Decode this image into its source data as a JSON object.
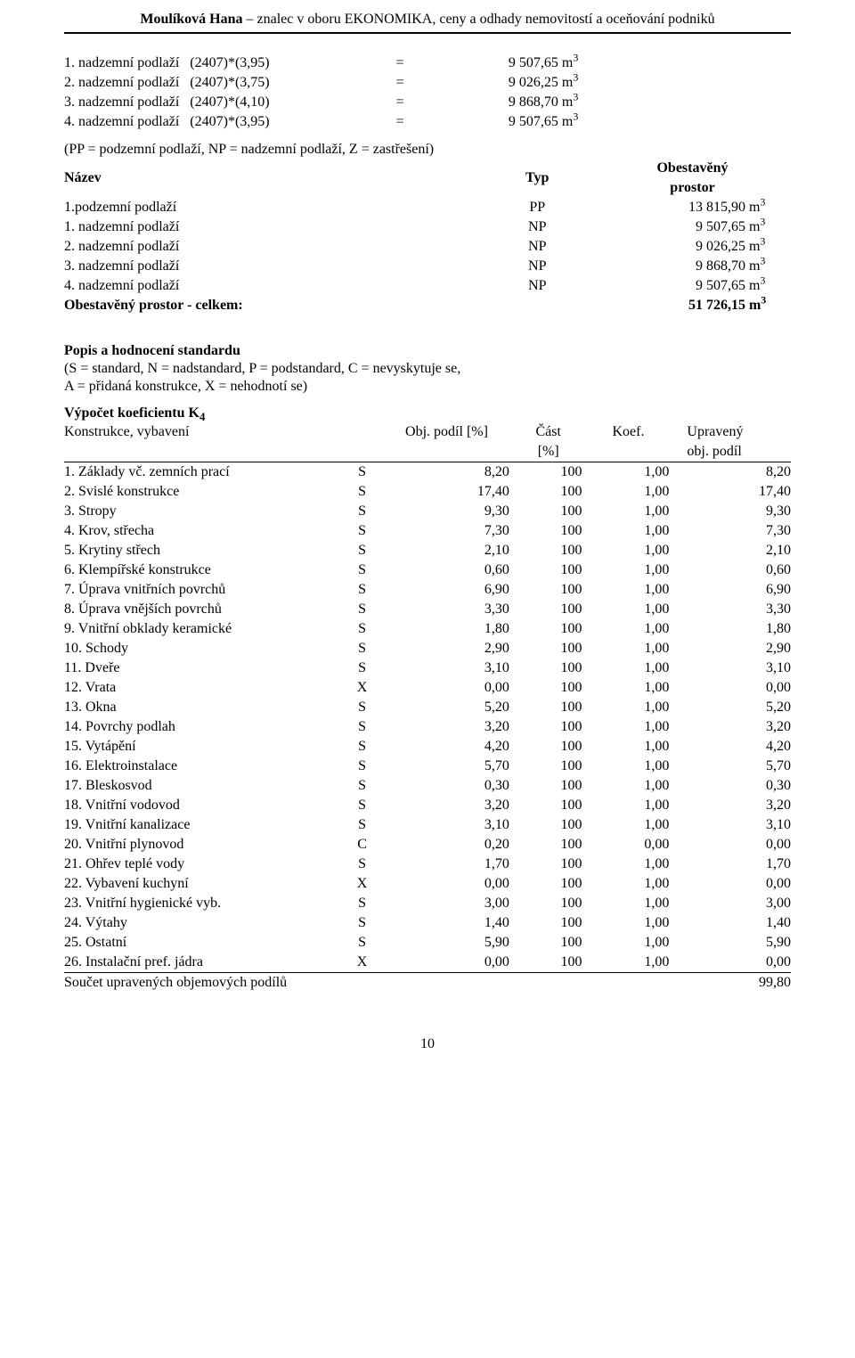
{
  "header": {
    "name_bold": "Moulíková Hana",
    "sep": " – ",
    "rest": "znalec v oboru EKONOMIKA, ceny a odhady nemovitostí a oceňování podniků"
  },
  "formula_rows": [
    {
      "label": "1. nadzemní podlaží",
      "expr": "(2407)*(3,95)",
      "eq": "=",
      "value": "9 507,65",
      "unit_prefix": "m",
      "unit_sup": "3"
    },
    {
      "label": "2. nadzemní podlaží",
      "expr": "(2407)*(3,75)",
      "eq": "=",
      "value": "9 026,25",
      "unit_prefix": "m",
      "unit_sup": "3"
    },
    {
      "label": "3. nadzemní podlaží",
      "expr": "(2407)*(4,10)",
      "eq": "=",
      "value": "9 868,70",
      "unit_prefix": "m",
      "unit_sup": "3"
    },
    {
      "label": "4. nadzemní podlaží",
      "expr": "(2407)*(3,95)",
      "eq": "=",
      "value": "9 507,65",
      "unit_prefix": "m",
      "unit_sup": "3"
    }
  ],
  "legend_line": "(PP = podzemní podlaží, NP = nadzemní podlaží, Z = zastřešení)",
  "ntp_header": {
    "name": "Název",
    "typ": "Typ",
    "obes_line1": "Obestavěný",
    "obes_line2": "prostor"
  },
  "ntp_rows": [
    {
      "name": "1.podzemní podlaží",
      "typ": "PP",
      "value": "13 815,90",
      "unit_prefix": "m",
      "unit_sup": "3"
    },
    {
      "name": "1. nadzemní podlaží",
      "typ": "NP",
      "value": "9 507,65",
      "unit_prefix": "m",
      "unit_sup": "3"
    },
    {
      "name": "2. nadzemní podlaží",
      "typ": "NP",
      "value": "9 026,25",
      "unit_prefix": "m",
      "unit_sup": "3"
    },
    {
      "name": "3. nadzemní podlaží",
      "typ": "NP",
      "value": "9 868,70",
      "unit_prefix": "m",
      "unit_sup": "3"
    },
    {
      "name": "4. nadzemní podlaží",
      "typ": "NP",
      "value": "9 507,65",
      "unit_prefix": "m",
      "unit_sup": "3"
    }
  ],
  "ntp_total": {
    "label": "Obestavěný prostor - celkem:",
    "value": "51 726,15",
    "unit_prefix": "m",
    "unit_sup": "3"
  },
  "standard_heading": "Popis a hodnocení standardu",
  "standard_legend_l1": "(S = standard, N = nadstandard, P = podstandard, C = nevyskytuje se,",
  "standard_legend_l2": "A = přidaná konstrukce, X = nehodnotí se)",
  "k4_heading_prefix": "Výpočet koeficientu K",
  "k4_heading_sub": "4",
  "k4_header": {
    "konstrukce": "Konstrukce, vybavení",
    "obj_podil": "Obj. podíl [%]",
    "cast_l1": "Část",
    "cast_l2": "[%]",
    "koef": "Koef.",
    "upr_l1": "Upravený",
    "upr_l2": "obj. podíl"
  },
  "k4_rows": [
    {
      "name": "1. Základy vč. zemních prací",
      "cast": "S",
      "obj": "8,20",
      "castp": "100",
      "koef": "1,00",
      "upr": "8,20"
    },
    {
      "name": "2. Svislé konstrukce",
      "cast": "S",
      "obj": "17,40",
      "castp": "100",
      "koef": "1,00",
      "upr": "17,40"
    },
    {
      "name": "3. Stropy",
      "cast": "S",
      "obj": "9,30",
      "castp": "100",
      "koef": "1,00",
      "upr": "9,30"
    },
    {
      "name": "4. Krov, střecha",
      "cast": "S",
      "obj": "7,30",
      "castp": "100",
      "koef": "1,00",
      "upr": "7,30"
    },
    {
      "name": "5. Krytiny střech",
      "cast": "S",
      "obj": "2,10",
      "castp": "100",
      "koef": "1,00",
      "upr": "2,10"
    },
    {
      "name": "6. Klempířské konstrukce",
      "cast": "S",
      "obj": "0,60",
      "castp": "100",
      "koef": "1,00",
      "upr": "0,60"
    },
    {
      "name": "7. Úprava vnitřních povrchů",
      "cast": "S",
      "obj": "6,90",
      "castp": "100",
      "koef": "1,00",
      "upr": "6,90"
    },
    {
      "name": "8. Úprava vnějších povrchů",
      "cast": "S",
      "obj": "3,30",
      "castp": "100",
      "koef": "1,00",
      "upr": "3,30"
    },
    {
      "name": "9. Vnitřní obklady keramické",
      "cast": "S",
      "obj": "1,80",
      "castp": "100",
      "koef": "1,00",
      "upr": "1,80"
    },
    {
      "name": "10. Schody",
      "cast": "S",
      "obj": "2,90",
      "castp": "100",
      "koef": "1,00",
      "upr": "2,90"
    },
    {
      "name": "11. Dveře",
      "cast": "S",
      "obj": "3,10",
      "castp": "100",
      "koef": "1,00",
      "upr": "3,10"
    },
    {
      "name": "12. Vrata",
      "cast": "X",
      "obj": "0,00",
      "castp": "100",
      "koef": "1,00",
      "upr": "0,00"
    },
    {
      "name": "13. Okna",
      "cast": "S",
      "obj": "5,20",
      "castp": "100",
      "koef": "1,00",
      "upr": "5,20"
    },
    {
      "name": "14. Povrchy podlah",
      "cast": "S",
      "obj": "3,20",
      "castp": "100",
      "koef": "1,00",
      "upr": "3,20"
    },
    {
      "name": "15. Vytápění",
      "cast": "S",
      "obj": "4,20",
      "castp": "100",
      "koef": "1,00",
      "upr": "4,20"
    },
    {
      "name": "16. Elektroinstalace",
      "cast": "S",
      "obj": "5,70",
      "castp": "100",
      "koef": "1,00",
      "upr": "5,70"
    },
    {
      "name": "17. Bleskosvod",
      "cast": "S",
      "obj": "0,30",
      "castp": "100",
      "koef": "1,00",
      "upr": "0,30"
    },
    {
      "name": "18. Vnitřní vodovod",
      "cast": "S",
      "obj": "3,20",
      "castp": "100",
      "koef": "1,00",
      "upr": "3,20"
    },
    {
      "name": "19. Vnitřní kanalizace",
      "cast": "S",
      "obj": "3,10",
      "castp": "100",
      "koef": "1,00",
      "upr": "3,10"
    },
    {
      "name": "20. Vnitřní plynovod",
      "cast": "C",
      "obj": "0,20",
      "castp": "100",
      "koef": "0,00",
      "upr": "0,00"
    },
    {
      "name": "21. Ohřev teplé vody",
      "cast": "S",
      "obj": "1,70",
      "castp": "100",
      "koef": "1,00",
      "upr": "1,70"
    },
    {
      "name": "22. Vybavení kuchyní",
      "cast": "X",
      "obj": "0,00",
      "castp": "100",
      "koef": "1,00",
      "upr": "0,00"
    },
    {
      "name": "23. Vnitřní hygienické vyb.",
      "cast": "S",
      "obj": "3,00",
      "castp": "100",
      "koef": "1,00",
      "upr": "3,00"
    },
    {
      "name": "24. Výtahy",
      "cast": "S",
      "obj": "1,40",
      "castp": "100",
      "koef": "1,00",
      "upr": "1,40"
    },
    {
      "name": "25. Ostatní",
      "cast": "S",
      "obj": "5,90",
      "castp": "100",
      "koef": "1,00",
      "upr": "5,90"
    },
    {
      "name": "26. Instalační pref. jádra",
      "cast": "X",
      "obj": "0,00",
      "castp": "100",
      "koef": "1,00",
      "upr": "0,00"
    }
  ],
  "k4_total": {
    "label": "Součet upravených objemových podílů",
    "value": "99,80"
  },
  "page_number": "10"
}
